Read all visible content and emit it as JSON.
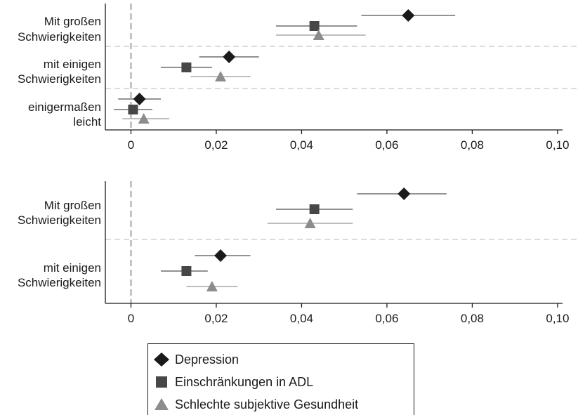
{
  "colors": {
    "Depression": "#1a1a1a",
    "Einschränkungen in ADL": "#474747",
    "Schlechte subjektive Gesundheit": "#8c8c8c",
    "reference_line": "#c4c4c4",
    "separator": "#c8c8c8"
  },
  "markers": {
    "Depression": "diamond",
    "Einschränkungen in ADL": "square",
    "Schlechte subjektive Gesundheit": "triangle"
  },
  "legend": {
    "items": [
      "Depression",
      "Einschränkungen in ADL",
      "Schlechte subjektive Gesundheit"
    ]
  },
  "chart_data": [
    {
      "type": "scatter",
      "subtype": "coefficient-plot-with-confidence-intervals",
      "x_ticks": [
        "0",
        "0,02",
        "0,04",
        "0,06",
        "0,08",
        "0,10"
      ],
      "x_tick_values": [
        0,
        0.02,
        0.04,
        0.06,
        0.08,
        0.1
      ],
      "xlim": [
        -0.006,
        0.101
      ],
      "reference_line": 0,
      "categories": [
        {
          "label": [
            "Mit großen",
            "Schwierigkeiten"
          ]
        },
        {
          "label": [
            "mit einigen",
            "Schwierigkeiten"
          ]
        },
        {
          "label": [
            "einigermaßen",
            "leicht"
          ]
        }
      ],
      "series": [
        {
          "name": "Depression",
          "values": [
            0.065,
            0.023,
            0.002
          ],
          "ci_low": [
            0.054,
            0.016,
            -0.003
          ],
          "ci_high": [
            0.076,
            0.03,
            0.007
          ]
        },
        {
          "name": "Einschränkungen in ADL",
          "values": [
            0.043,
            0.013,
            0.0005
          ],
          "ci_low": [
            0.034,
            0.007,
            -0.004
          ],
          "ci_high": [
            0.053,
            0.019,
            0.005
          ]
        },
        {
          "name": "Schlechte subjektive Gesundheit",
          "values": [
            0.044,
            0.021,
            0.003
          ],
          "ci_low": [
            0.034,
            0.014,
            -0.002
          ],
          "ci_high": [
            0.055,
            0.028,
            0.009
          ]
        }
      ]
    },
    {
      "type": "scatter",
      "subtype": "coefficient-plot-with-confidence-intervals",
      "x_ticks": [
        "0",
        "0,02",
        "0,04",
        "0,06",
        "0,08",
        "0,10"
      ],
      "x_tick_values": [
        0,
        0.02,
        0.04,
        0.06,
        0.08,
        0.1
      ],
      "xlim": [
        -0.006,
        0.101
      ],
      "reference_line": 0,
      "categories": [
        {
          "label": [
            "Mit großen",
            "Schwierigkeiten"
          ]
        },
        {
          "label": [
            "mit einigen",
            "Schwierigkeiten"
          ]
        }
      ],
      "series": [
        {
          "name": "Depression",
          "values": [
            0.064,
            0.021
          ],
          "ci_low": [
            0.053,
            0.015
          ],
          "ci_high": [
            0.074,
            0.028
          ]
        },
        {
          "name": "Einschränkungen in ADL",
          "values": [
            0.043,
            0.013
          ],
          "ci_low": [
            0.034,
            0.007
          ],
          "ci_high": [
            0.052,
            0.018
          ]
        },
        {
          "name": "Schlechte subjektive Gesundheit",
          "values": [
            0.042,
            0.019
          ],
          "ci_low": [
            0.032,
            0.013
          ],
          "ci_high": [
            0.052,
            0.025
          ]
        }
      ]
    }
  ]
}
